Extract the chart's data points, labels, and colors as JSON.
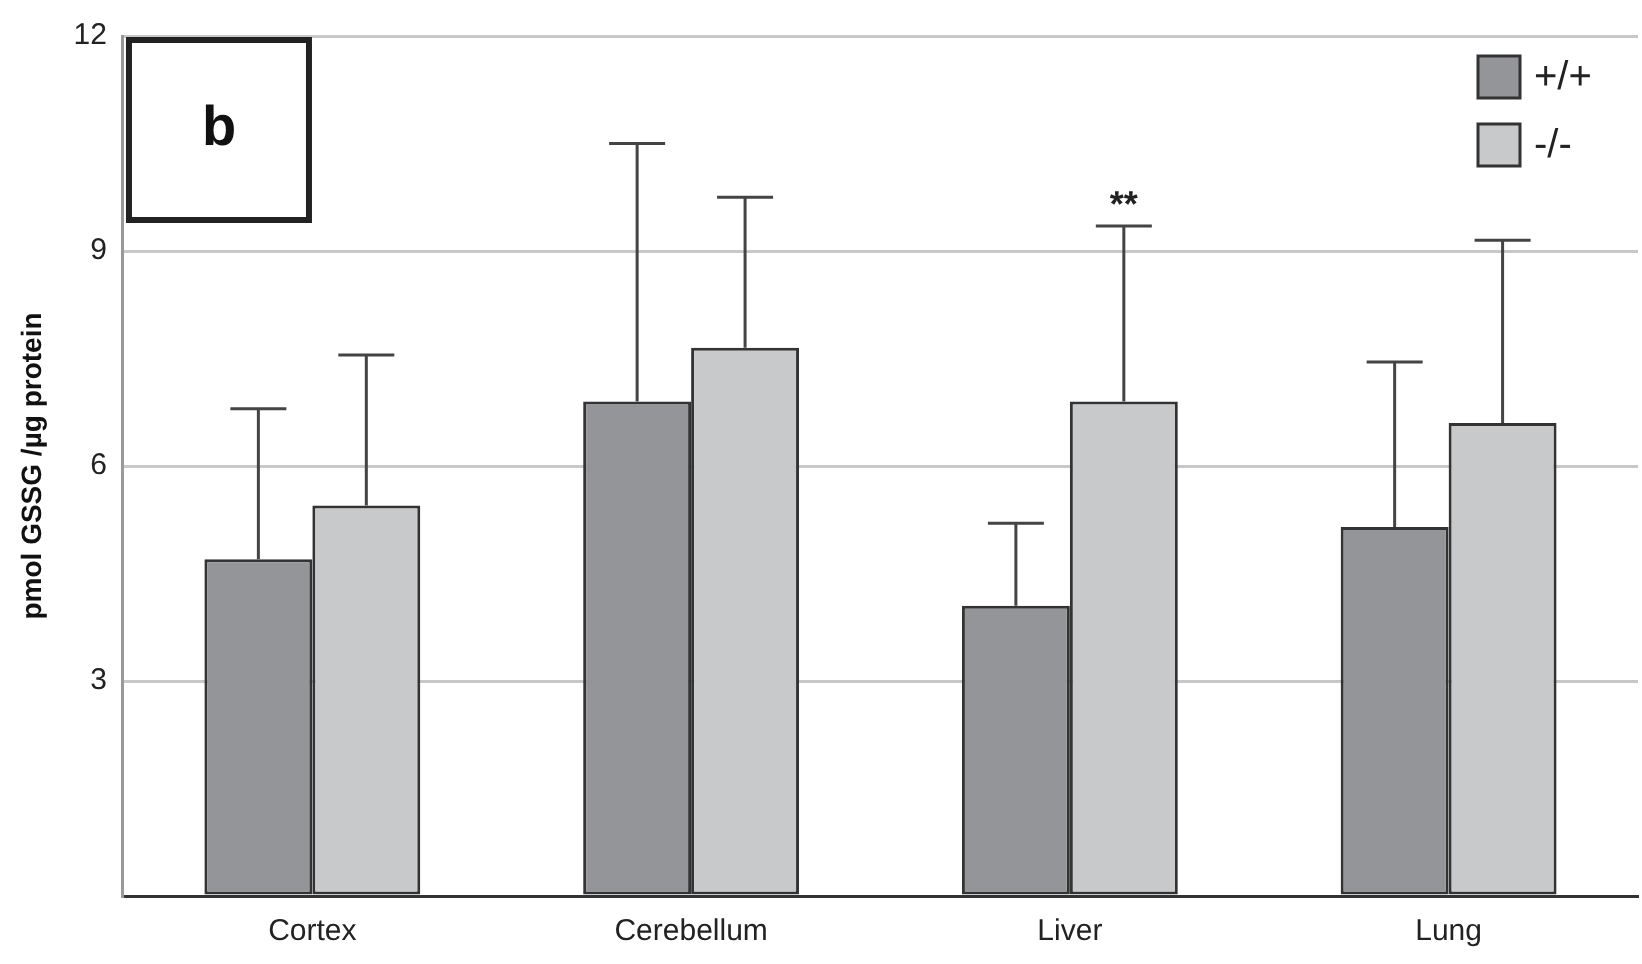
{
  "chart_data": {
    "type": "bar",
    "ylabel": "pmol GSSG /µg protein",
    "categories": [
      "Cortex",
      "Cerebellum",
      "Liver",
      "Lung"
    ],
    "series": [
      {
        "name": "+/+",
        "color": "#939598",
        "values": [
          4.7,
          6.9,
          4.05,
          5.15
        ],
        "errors": [
          [
            4.7,
            6.8
          ],
          [
            6.9,
            10.5
          ],
          [
            4.05,
            5.2
          ],
          [
            5.15,
            7.45
          ]
        ]
      },
      {
        "name": "-/-",
        "color": "#c8c9cb",
        "values": [
          5.45,
          7.65,
          6.9,
          6.6
        ],
        "errors": [
          [
            5.45,
            7.55
          ],
          [
            7.65,
            9.75
          ],
          [
            6.9,
            9.35
          ],
          [
            6.6,
            9.15
          ]
        ]
      }
    ],
    "ylim": [
      0,
      12
    ],
    "yticks": [
      {
        "value": 0,
        "label": null
      },
      3,
      6,
      9,
      12
    ],
    "grid": "y",
    "legend": "top right",
    "annotations": [
      "b",
      "**"
    ]
  }
}
